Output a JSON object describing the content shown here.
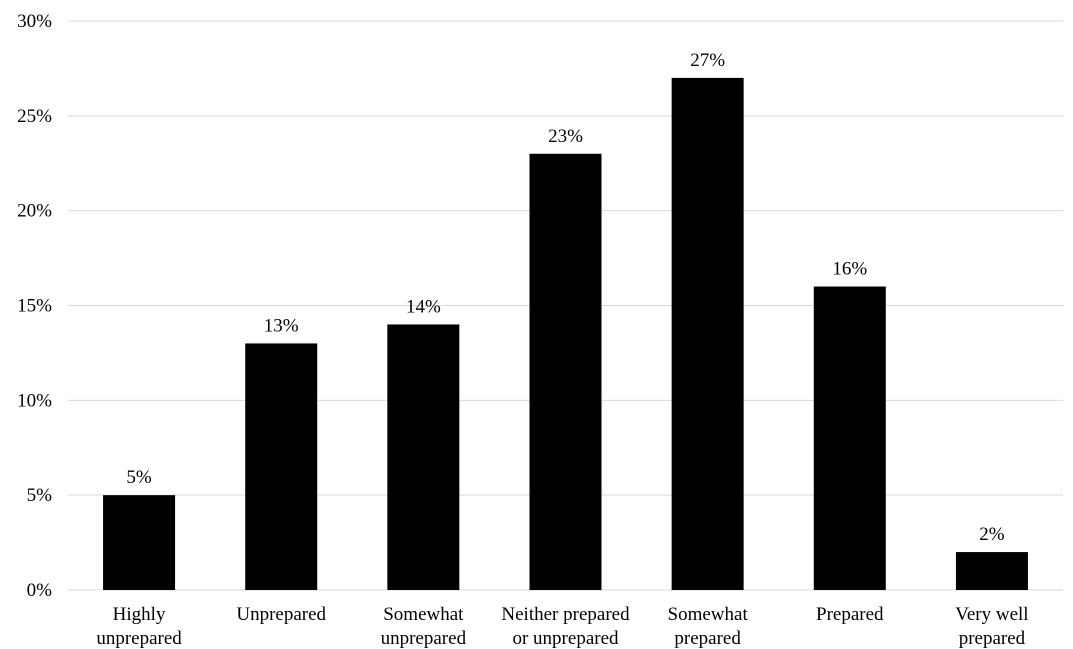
{
  "chart_data": {
    "type": "bar",
    "categories": [
      [
        "Highly",
        "unprepared"
      ],
      [
        "Unprepared"
      ],
      [
        "Somewhat",
        "unprepared"
      ],
      [
        "Neither prepared",
        "or unprepared"
      ],
      [
        "Somewhat",
        "prepared"
      ],
      [
        "Prepared"
      ],
      [
        "Very well",
        "prepared"
      ]
    ],
    "values": [
      5,
      13,
      14,
      23,
      27,
      16,
      2
    ],
    "data_labels": [
      "5%",
      "13%",
      "14%",
      "23%",
      "27%",
      "16%",
      "2%"
    ],
    "yticks": [
      0,
      5,
      10,
      15,
      20,
      25,
      30
    ],
    "ytick_labels": [
      "0%",
      "5%",
      "10%",
      "15%",
      "20%",
      "25%",
      "30%"
    ],
    "ylim": [
      0,
      30
    ],
    "title": "",
    "xlabel": "",
    "ylabel": "",
    "grid": true,
    "legend": "none",
    "bar_color": "#000000",
    "grid_color": "#d9d9d9"
  }
}
